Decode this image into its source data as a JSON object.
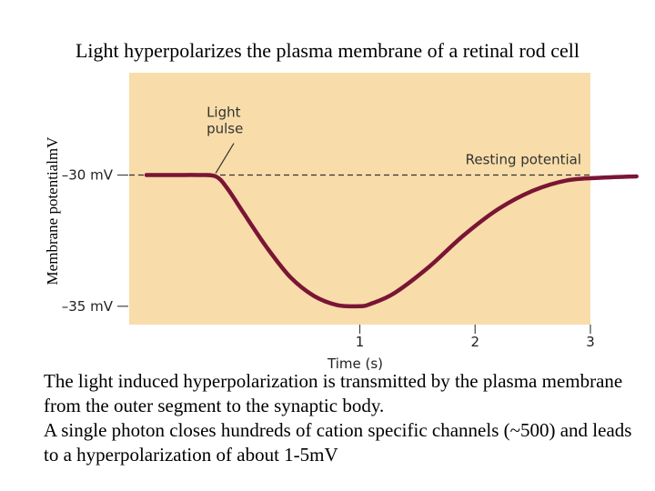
{
  "slide": {
    "title": "Light hyperpolarizes the plasma membrane of a retinal rod cell",
    "paragraphs": [
      "The light induced hyperpolarization is transmitted by the plasma membrane from the outer segment to the synaptic body.",
      "A single photon closes hundreds of cation specific channels (~500) and leads to a hyperpolarization of about 1-5mV"
    ]
  },
  "chart_data": {
    "type": "line",
    "title": "Light hyperpolarizes the plasma membrane of a retinal rod cell",
    "xlabel": "Time (s)",
    "ylabel": "Membrane potentialmV",
    "xlim": [
      -1.0,
      3.0
    ],
    "ylim": [
      -35.7,
      -26.1
    ],
    "x_ticks": [
      {
        "value": 1,
        "label": "1"
      },
      {
        "value": 2,
        "label": "2"
      },
      {
        "value": 3,
        "label": "3"
      }
    ],
    "y_ticks": [
      {
        "value": -30,
        "label": "–30 mV"
      },
      {
        "value": -35,
        "label": "–35 mV"
      }
    ],
    "grid": false,
    "background_color": "#f8ddaa",
    "line_color": "#7a1535",
    "series": [
      {
        "values": [
          [
            -0.85,
            -30.0
          ],
          [
            -0.6,
            -30.0
          ],
          [
            -0.4,
            -30.0
          ],
          [
            -0.25,
            -30.05
          ],
          [
            -0.15,
            -30.5
          ],
          [
            0.0,
            -31.5
          ],
          [
            0.2,
            -32.8
          ],
          [
            0.4,
            -33.9
          ],
          [
            0.6,
            -34.6
          ],
          [
            0.8,
            -34.95
          ],
          [
            1.0,
            -35.0
          ],
          [
            1.1,
            -34.9
          ],
          [
            1.3,
            -34.5
          ],
          [
            1.6,
            -33.5
          ],
          [
            1.9,
            -32.3
          ],
          [
            2.2,
            -31.3
          ],
          [
            2.5,
            -30.6
          ],
          [
            2.8,
            -30.2
          ],
          [
            3.1,
            -30.1
          ],
          [
            3.4,
            -30.05
          ]
        ]
      }
    ],
    "reference_line": {
      "value": -30,
      "label": "Resting potential",
      "style": "dashed"
    },
    "annotations": [
      {
        "text": "Light pulse",
        "x": -0.25,
        "y": -30.0
      }
    ]
  }
}
